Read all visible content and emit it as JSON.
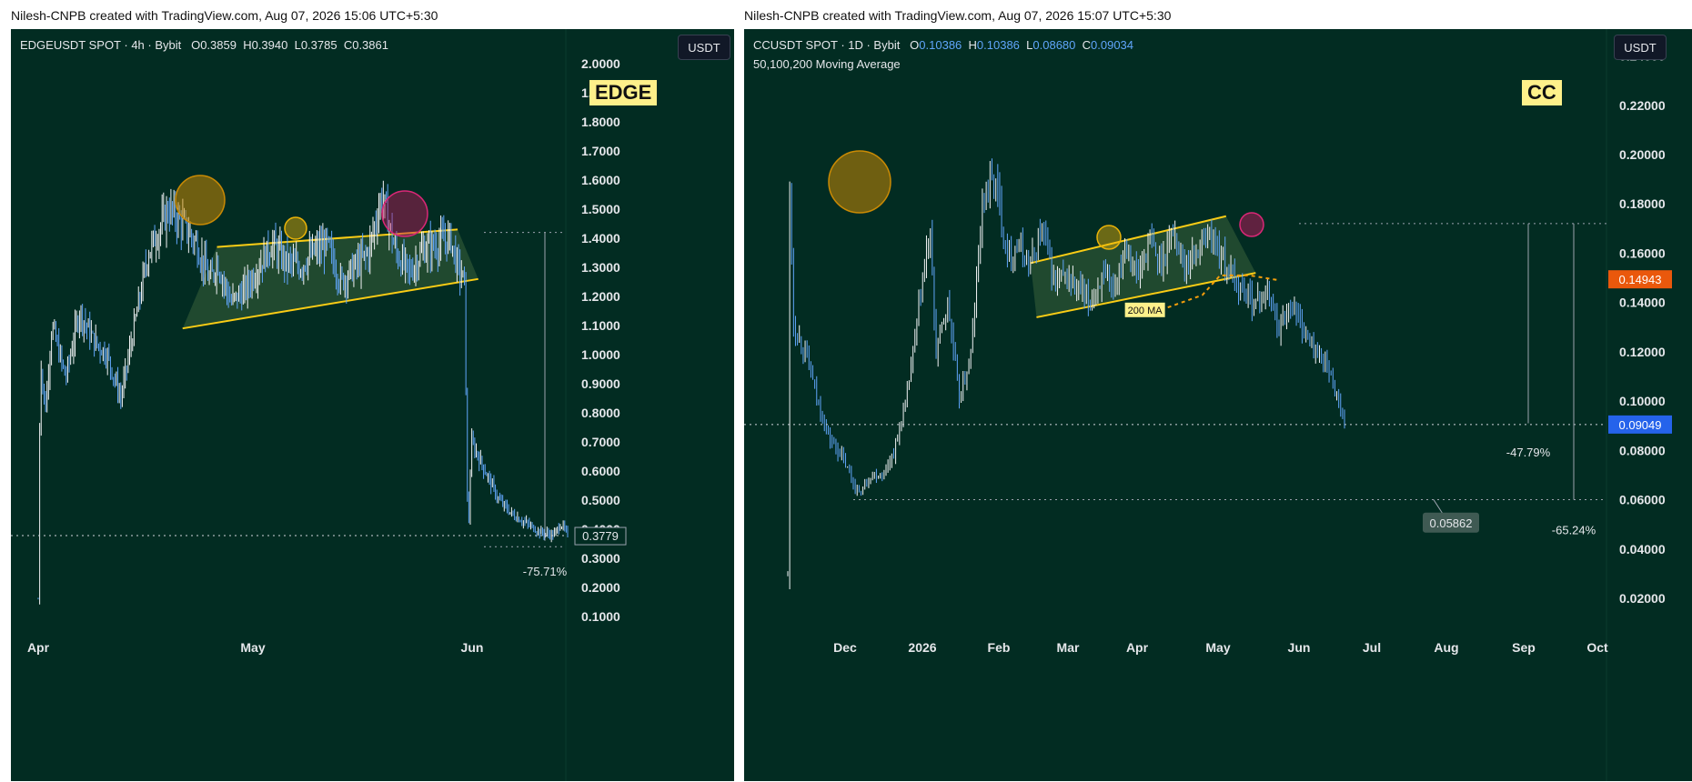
{
  "credits": {
    "left": "Nilesh-CNPB created with TradingView.com, Aug 07, 2026 15:06 UTC+5:30",
    "right": "Nilesh-CNPB created with TradingView.com, Aug 07, 2026 15:07 UTC+5:30"
  },
  "colors": {
    "background": "#022c22",
    "candle_up": "#f3f4f6",
    "candle_down": "#60a5fa",
    "channel": "#facc15",
    "ma200": "#f59e0b"
  },
  "left_panel": {
    "symbol": "EDGEUSDT SPOT · 4h · Bybit",
    "ohlc": {
      "o_label": "O",
      "o": "0.3859",
      "h_label": "H",
      "h": "0.3940",
      "l_label": "L",
      "l": "0.3785",
      "c_label": "C",
      "c": "0.3861"
    },
    "currency_button": "USDT",
    "tag": "EDGE"
  },
  "right_panel": {
    "symbol": "CCUSDT SPOT · 1D · Bybit",
    "ohlc": {
      "o_label": "O",
      "o": "0.10386",
      "h_label": "H",
      "h": "0.10386",
      "l_label": "L",
      "l": "0.08680",
      "c_label": "C",
      "c": "0.09034"
    },
    "indicator": "50,100,200 Moving Average",
    "currency_button": "USDT",
    "tag": "CC"
  },
  "chart_data": [
    {
      "type": "candlestick",
      "title": "EDGEUSDT SPOT · 4h · Bybit",
      "ylim": [
        0.05,
        2.1
      ],
      "y_ticks": [
        "2.0000",
        "1.9000",
        "1.8000",
        "1.7000",
        "1.6000",
        "1.5000",
        "1.4000",
        "1.3000",
        "1.2000",
        "1.1000",
        "1.0000",
        "0.9000",
        "0.8000",
        "0.7000",
        "0.6000",
        "0.5000",
        "0.4000",
        "0.3000",
        "0.2000",
        "0.1000"
      ],
      "x_ticks": [
        "Apr",
        "May",
        "Jun"
      ],
      "last_price": "0.3779",
      "annotations": {
        "drop": "-75.71%",
        "resistance": 1.42,
        "low_level": 0.34
      },
      "channel": {
        "upper": [
          1.37,
          1.43
        ],
        "lower": [
          1.09,
          1.26
        ]
      },
      "price_path": [
        [
          0,
          0.16
        ],
        [
          0.3,
          1.0
        ],
        [
          1,
          0.8
        ],
        [
          2,
          1.1
        ],
        [
          4,
          0.92
        ],
        [
          6,
          1.15
        ],
        [
          8,
          1.05
        ],
        [
          10,
          1.0
        ],
        [
          12,
          0.85
        ],
        [
          14,
          1.1
        ],
        [
          16,
          1.35
        ],
        [
          18,
          1.45
        ],
        [
          19,
          1.5
        ],
        [
          21,
          1.45
        ],
        [
          23,
          1.38
        ],
        [
          25,
          1.25
        ],
        [
          26,
          1.32
        ],
        [
          28,
          1.18
        ],
        [
          30,
          1.22
        ],
        [
          32,
          1.3
        ],
        [
          34,
          1.38
        ],
        [
          36,
          1.32
        ],
        [
          38,
          1.3
        ],
        [
          40,
          1.35
        ],
        [
          42,
          1.38
        ],
        [
          44,
          1.25
        ],
        [
          46,
          1.3
        ],
        [
          48,
          1.35
        ],
        [
          50,
          1.55
        ],
        [
          52,
          1.35
        ],
        [
          54,
          1.28
        ],
        [
          56,
          1.36
        ],
        [
          58,
          1.38
        ],
        [
          60,
          1.4
        ],
        [
          61,
          1.3
        ],
        [
          62,
          1.25
        ],
        [
          62.5,
          0.35
        ],
        [
          63,
          0.7
        ],
        [
          65,
          0.6
        ],
        [
          67,
          0.5
        ],
        [
          69,
          0.45
        ],
        [
          71,
          0.42
        ],
        [
          73,
          0.39
        ],
        [
          75,
          0.38
        ],
        [
          76,
          0.42
        ],
        [
          77,
          0.38
        ]
      ]
    },
    {
      "type": "candlestick",
      "title": "CCUSDT SPOT · 1D · Bybit",
      "ylim": [
        0.0,
        0.245
      ],
      "y_ticks": [
        "0.24000",
        "0.22000",
        "0.20000",
        "0.18000",
        "0.16000",
        "0.14000",
        "0.12000",
        "0.10000",
        "0.08000",
        "0.06000",
        "0.04000",
        "0.02000"
      ],
      "x_ticks": [
        "Dec",
        "2026",
        "Feb",
        "Mar",
        "Apr",
        "May",
        "Jun",
        "Jul",
        "Aug",
        "Sep",
        "Oct"
      ],
      "ma200_label": "200 MA",
      "ma200_value": "0.14943",
      "last_price": "0.09049",
      "annotations": {
        "drop_1": "-47.79%",
        "drop_2": "-65.24%",
        "target": "0.05862",
        "resistance": 0.172
      },
      "channel": {
        "upper": [
          0.156,
          0.175
        ],
        "lower": [
          0.134,
          0.152
        ]
      },
      "price_path": [
        [
          0,
          0.03
        ],
        [
          0.3,
          0.19
        ],
        [
          1,
          0.13
        ],
        [
          3,
          0.12
        ],
        [
          5,
          0.1
        ],
        [
          7,
          0.085
        ],
        [
          9,
          0.078
        ],
        [
          12,
          0.062
        ],
        [
          14,
          0.07
        ],
        [
          16,
          0.07
        ],
        [
          18,
          0.08
        ],
        [
          20,
          0.1
        ],
        [
          22,
          0.135
        ],
        [
          24,
          0.17
        ],
        [
          25,
          0.12
        ],
        [
          27,
          0.14
        ],
        [
          29,
          0.1
        ],
        [
          31,
          0.12
        ],
        [
          33,
          0.185
        ],
        [
          35,
          0.19
        ],
        [
          37,
          0.16
        ],
        [
          39,
          0.162
        ],
        [
          41,
          0.155
        ],
        [
          43,
          0.17
        ],
        [
          45,
          0.148
        ],
        [
          47,
          0.15
        ],
        [
          49,
          0.145
        ],
        [
          51,
          0.14
        ],
        [
          53,
          0.15
        ],
        [
          55,
          0.145
        ],
        [
          57,
          0.165
        ],
        [
          59,
          0.15
        ],
        [
          61,
          0.165
        ],
        [
          63,
          0.155
        ],
        [
          65,
          0.17
        ],
        [
          67,
          0.155
        ],
        [
          69,
          0.16
        ],
        [
          71,
          0.168
        ],
        [
          73,
          0.16
        ],
        [
          75,
          0.15
        ],
        [
          77,
          0.145
        ],
        [
          79,
          0.14
        ],
        [
          81,
          0.145
        ],
        [
          83,
          0.13
        ],
        [
          85,
          0.14
        ],
        [
          87,
          0.13
        ],
        [
          89,
          0.12
        ],
        [
          91,
          0.115
        ],
        [
          93,
          0.1
        ],
        [
          94,
          0.09
        ]
      ]
    }
  ]
}
